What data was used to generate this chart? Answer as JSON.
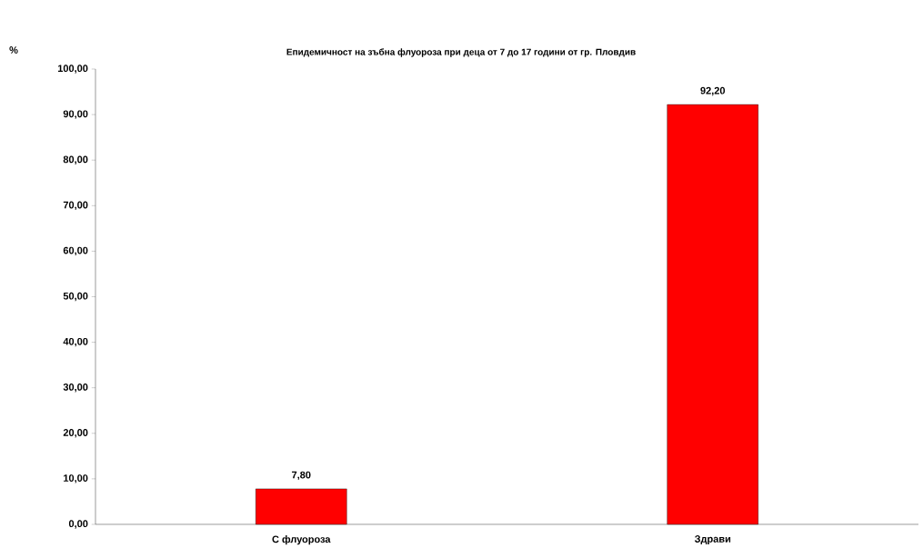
{
  "chart_data": {
    "type": "bar",
    "title": "Епидемичност на зъбна флуороза при деца от 7 до 17 години от гр. Пловдив",
    "ylabel": "%",
    "categories": [
      "С флуороза",
      "Здрави"
    ],
    "values": [
      7.8,
      92.2
    ],
    "colors": [
      "#ff0000",
      "#ff0000"
    ],
    "value_labels": [
      "7,80",
      "92,20"
    ],
    "ylim": [
      0,
      100
    ],
    "yticks": [
      {
        "value": 0,
        "label": "0,00"
      },
      {
        "value": 10,
        "label": "10,00"
      },
      {
        "value": 20,
        "label": "20,00"
      },
      {
        "value": 30,
        "label": "30,00"
      },
      {
        "value": 40,
        "label": "40,00"
      },
      {
        "value": 50,
        "label": "50,00"
      },
      {
        "value": 60,
        "label": "60,00"
      },
      {
        "value": 70,
        "label": "70,00"
      },
      {
        "value": 80,
        "label": "80,00"
      },
      {
        "value": 90,
        "label": "90,00"
      },
      {
        "value": 100,
        "label": "100,00"
      }
    ],
    "grid": false
  }
}
